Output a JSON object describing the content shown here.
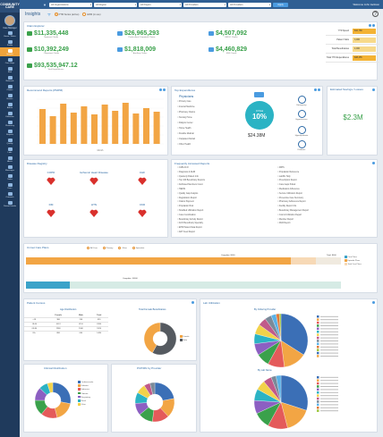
{
  "app": {
    "logo": "COMMUNITY CARE",
    "page_title": "Insights",
    "welcome": "Welcome John Jackson",
    "help": "?"
  },
  "user": {
    "name": "Care Manager"
  },
  "sidebar": {
    "items": [
      {
        "label": "Home / Notes"
      },
      {
        "label": "Profile"
      },
      {
        "label": "Insights"
      },
      {
        "label": "Care Gaps"
      },
      {
        "label": "Risk"
      },
      {
        "label": "Referrals"
      },
      {
        "label": "Claims"
      },
      {
        "label": "Events"
      },
      {
        "label": "Admin"
      },
      {
        "label": "Utilization"
      },
      {
        "label": "Pharmacy"
      },
      {
        "label": "Reports"
      },
      {
        "label": "Quality"
      },
      {
        "label": "Labs"
      },
      {
        "label": "Alerts"
      },
      {
        "label": "Messages"
      },
      {
        "label": "Tasks"
      },
      {
        "label": "Docs"
      },
      {
        "label": "Outreach"
      },
      {
        "label": "Patient Details"
      }
    ]
  },
  "topbar": {
    "filters": [
      "All Organizations",
      "All Region",
      "All Payers",
      "All Providers",
      "All Providers"
    ],
    "apply_label": "Apply"
  },
  "subbar": {
    "options": [
      "PTM Series (active)",
      "ERM (in use)"
    ]
  },
  "claims": {
    "title": "Claim Explorer",
    "kpis": [
      {
        "value": "$11,335,448",
        "label": "Inpatient Claims",
        "color": "#3aa14b",
        "icon": "dollar-icon"
      },
      {
        "value": "$26,965,293",
        "label": "Professional Outpatient Claims",
        "color": "#3aa14b",
        "icon": "hospital-icon"
      },
      {
        "value": "$4,507,092",
        "label": "ER/UC Claims",
        "color": "#3aa14b",
        "icon": "ambulance-icon"
      },
      {
        "value": "$10,392,249",
        "label": "Outpatient Claims",
        "color": "#3aa14b",
        "icon": "money-icon"
      },
      {
        "value": "$1,818,009",
        "label": "Ancillary Claims",
        "color": "#3aa14b",
        "icon": "pill-icon"
      },
      {
        "value": "$4,460,829",
        "label": "SNF Claims",
        "color": "#3aa14b",
        "icon": "bed-icon"
      },
      {
        "value": "$93,535,947.12",
        "label": "Total Expenditures",
        "color": "#3aa14b",
        "icon": "wallet-icon"
      }
    ]
  },
  "rightstats": [
    {
      "label": "YTD Spend",
      "value": "$10,789",
      "color": "#f3b233"
    },
    {
      "label": "Patient Visits",
      "value": "3,000",
      "color": "#f7d98a"
    },
    {
      "label": "Total Beneficiaries",
      "value": "4,000",
      "color": "#f7d98a"
    },
    {
      "label": "Total YTD Expenditures",
      "value": "$38,455",
      "color": "#f3b233"
    }
  ],
  "referrals": {
    "title": "Recommend Reports (PMPM)",
    "months": [
      "Jan",
      "Feb",
      "Mar",
      "Apr",
      "May",
      "Jun",
      "Jul",
      "Aug",
      "Sep",
      "Oct",
      "Nov",
      "Dec"
    ],
    "xlabel": "Month",
    "ylabel": ""
  },
  "top_exp": {
    "title": "Top Expenditures",
    "header": "Physicians",
    "items": [
      "Primary Care",
      "Internal Medicine",
      "Pharmacy Claims",
      "Nursing Home",
      "Dialysis Center",
      "Home Health",
      "Durable Medical",
      "Outpatient Rehab",
      "Other Health"
    ],
    "pct": "10%",
    "pct_label": "Of Total",
    "amount": "$24.38M",
    "icons": [
      "Emergency",
      "Hypertension",
      "Hyperlipidemia",
      "Diabetes"
    ]
  },
  "est_savings": {
    "title": "Estimated Savings / Losses",
    "value": "$2.3M"
  },
  "disease": {
    "title": "Disease Registry",
    "items": [
      "COPD",
      "Ischemic Heart Disease",
      "CHF",
      "DM",
      "HTN",
      "CKD"
    ]
  },
  "freq_reports": {
    "title": "Frequently Accessed Reports",
    "left": [
      "CMS ACO",
      "Diagnosis & Refill",
      "Quarterly Patient Info",
      "Top 100 Beneficiary Reports",
      "Attributed Members Count",
      "HEDIS",
      "Quality Gap Analysis",
      "Registration Report",
      "Claims Payment",
      "Population Risk",
      "Stratified Utilization Report",
      "Care Coordination",
      "Beneficiary Activity Report",
      "ACO Beneficiary Specialty",
      "EHR Patient Data Report",
      "ADT Feed Report"
    ],
    "right": [
      "MIPS",
      "Population Reference",
      "Lab/Rx Tally",
      "Prescription Report",
      "Care Gaps Pulled",
      "Medication Adherence",
      "Service Utilization Report",
      "Preventive Care Summary",
      "Pharmacy Adherence Report",
      "Facility Report Info",
      "Beneficiary Management Report",
      "Cost & Utilization Report",
      "Member Report",
      "MLR Report"
    ]
  },
  "care_plan": {
    "title": "Unmet Care Plans",
    "legend_top": [
      "All Care",
      "Primary",
      "Other",
      "Specialist"
    ],
    "completed1": "Complete: 8000",
    "total1": "Total: 8000",
    "completed2": "Complete: 10000",
    "legend_right": [
      "Care Plans",
      "Episodic Plans",
      "Total Care Plans"
    ]
  },
  "demographics": {
    "title": "Patient Census",
    "age_title": "Age Distribution",
    "headers": [
      "",
      "Female",
      "Male",
      "Total"
    ],
    "rows": [
      [
        "<18",
        "380",
        "246",
        "626"
      ],
      [
        "18-64",
        "4074",
        "4110",
        "8184"
      ],
      [
        "65-84",
        "2980",
        "2340",
        "5320"
      ],
      [
        "85+",
        "880",
        "604",
        "1484"
      ]
    ],
    "footer": "Total",
    "gender_title": "Total Female Beneficiaries",
    "gender_legend": [
      "Female",
      "Male"
    ]
  },
  "lab_util": {
    "title": "Lab Utilization",
    "by_provider": "By Ordering Provider",
    "by_name": "By Lab Name"
  },
  "clinical": {
    "title": "Clinical Distribution",
    "legend": [
      "Cardiovascular",
      "Diabetes",
      "Endocrine",
      "Pediatric",
      "Respiratory",
      "Renal",
      "Other"
    ]
  },
  "pcp": {
    "title": "PCP/RN by Provider"
  }
}
